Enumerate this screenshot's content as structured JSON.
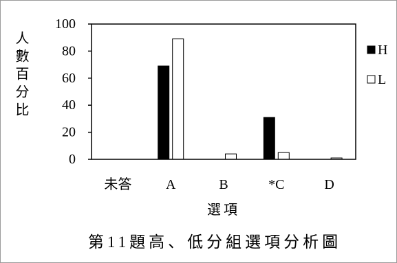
{
  "chart_data": {
    "type": "bar",
    "title": "第11題高、低分組選項分析圖",
    "xlabel": "選項",
    "ylabel": "人數百分比",
    "categories": [
      "未答",
      "A",
      "B",
      "*C",
      "D"
    ],
    "series": [
      {
        "name": "H",
        "values": [
          0,
          69,
          0,
          31,
          0
        ],
        "color": "#000000"
      },
      {
        "name": "L",
        "values": [
          0,
          89,
          4,
          5,
          1
        ],
        "color": "#ffffff"
      }
    ],
    "ylim": [
      0,
      100
    ],
    "yticks": [
      0,
      20,
      40,
      60,
      80,
      100
    ],
    "legend": "right",
    "grid": false
  }
}
